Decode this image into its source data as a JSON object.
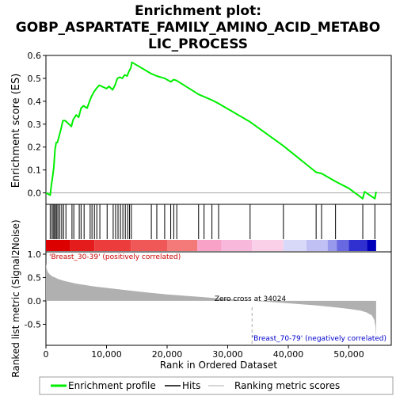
{
  "title_lines": [
    "Enrichment plot:",
    "GOBP_ASPARTATE_FAMILY_AMINO_ACID_METABO",
    "LIC_PROCESS"
  ],
  "colors": {
    "enrichment_line": "#00ee00",
    "hits": "#000000",
    "metric_fill": "#b0b0b0",
    "positive_text": "#cc0000",
    "negative_text": "#0000cc",
    "zero_line": "#999999"
  },
  "chart_data": {
    "type": "line",
    "panels": [
      "enrichment",
      "hits",
      "ranking_metric"
    ],
    "enrichment": {
      "ylabel": "Enrichment score (ES)",
      "ylim": [
        -0.05,
        0.6
      ],
      "yticks": [
        "0.0",
        "0.1",
        "0.2",
        "0.3",
        "0.4",
        "0.5",
        "0.6"
      ],
      "ytick_values": [
        0.0,
        0.1,
        0.2,
        0.3,
        0.4,
        0.5,
        0.6
      ],
      "xlim": [
        0,
        57000
      ],
      "series": [
        {
          "name": "Enrichment profile",
          "x": [
            0,
            700,
            900,
            1100,
            1300,
            1500,
            1700,
            1900,
            2200,
            2500,
            2800,
            3200,
            4200,
            4500,
            5000,
            5400,
            5800,
            6200,
            6800,
            7200,
            7500,
            7900,
            8300,
            8800,
            10000,
            10400,
            11000,
            11400,
            11800,
            12200,
            12600,
            13000,
            13400,
            13700,
            14000,
            14200,
            17400,
            18300,
            19600,
            20600,
            21100,
            21600,
            25200,
            26100,
            27400,
            28500,
            33700,
            39200,
            44600,
            45500,
            47800,
            50000,
            52300,
            52600,
            54300,
            54500
          ],
          "y": [
            0.0,
            -0.01,
            0.035,
            0.07,
            0.11,
            0.19,
            0.22,
            0.22,
            0.25,
            0.28,
            0.315,
            0.315,
            0.29,
            0.32,
            0.34,
            0.33,
            0.37,
            0.38,
            0.37,
            0.4,
            0.42,
            0.44,
            0.455,
            0.47,
            0.455,
            0.465,
            0.45,
            0.47,
            0.5,
            0.505,
            0.5,
            0.515,
            0.51,
            0.53,
            0.545,
            0.57,
            0.52,
            0.51,
            0.5,
            0.485,
            0.495,
            0.49,
            0.43,
            0.42,
            0.405,
            0.39,
            0.31,
            0.205,
            0.09,
            0.085,
            0.05,
            0.02,
            -0.025,
            0.005,
            -0.025,
            0.005
          ]
        }
      ]
    },
    "hits": {
      "legend": "Hits",
      "positions": [
        700,
        1000,
        1200,
        1400,
        1600,
        1800,
        2000,
        2300,
        2600,
        2900,
        3300,
        4300,
        4600,
        5500,
        5800,
        6300,
        7300,
        7600,
        8000,
        8400,
        8900,
        10100,
        11100,
        11500,
        11900,
        12300,
        12700,
        13100,
        13500,
        13800,
        14100,
        17400,
        18300,
        19600,
        20600,
        21100,
        21600,
        25200,
        26100,
        27400,
        28500,
        33700,
        39200,
        44600,
        45500,
        47800,
        52300,
        54300
      ]
    },
    "ranking_metric": {
      "legend": "Ranking metric scores",
      "ylabel": "Ranked list metric (Signal2Noise)",
      "xlabel": "Rank in Ordered Dataset",
      "ylim": [
        -0.95,
        1.05
      ],
      "yticks": [
        "-0.5",
        "0.0",
        "0.5",
        "1.0"
      ],
      "ytick_values": [
        -0.5,
        0.0,
        0.5,
        1.0
      ],
      "xticks": [
        "0",
        "10,000",
        "20,000",
        "30,000",
        "40,000",
        "50,000"
      ],
      "xtick_values": [
        0,
        10000,
        20000,
        30000,
        40000,
        50000
      ],
      "xlim": [
        0,
        57000
      ],
      "x": [
        0,
        100,
        300,
        600,
        1000,
        1500,
        2000,
        3000,
        5000,
        8000,
        12000,
        16000,
        20000,
        25000,
        30000,
        34024,
        38000,
        42000,
        45000,
        48000,
        50000,
        52000,
        53000,
        53800,
        54200,
        54400,
        54500
      ],
      "y": [
        0.8,
        0.7,
        0.62,
        0.57,
        0.53,
        0.5,
        0.47,
        0.43,
        0.37,
        0.31,
        0.25,
        0.19,
        0.14,
        0.09,
        0.04,
        0.0,
        -0.03,
        -0.07,
        -0.1,
        -0.14,
        -0.17,
        -0.21,
        -0.25,
        -0.31,
        -0.4,
        -0.55,
        -0.8
      ],
      "zero_cross_rank": 34024,
      "zero_cross_label": "Zero cross at 34024",
      "positive_label": "'Breast_30-39' (positively correlated)",
      "negative_label": "'Breast_70-79' (negatively correlated)"
    },
    "color_bar": {
      "breaks": [
        0,
        4000,
        8000,
        14000,
        20000,
        25000,
        29000,
        34000,
        39200,
        43000,
        46500,
        48000,
        50000,
        53000,
        54500
      ],
      "colors": [
        "#dd0000",
        "#e41c1c",
        "#ec3c3c",
        "#f05858",
        "#f47a7a",
        "#f8a2c8",
        "#f8b8dc",
        "#fad0e8",
        "#d8d8f8",
        "#c0c0f4",
        "#9898ec",
        "#6868e0",
        "#3030d0",
        "#0000bb"
      ]
    },
    "legend": [
      {
        "label": "Enrichment profile",
        "style": "green-line"
      },
      {
        "label": "Hits",
        "style": "black-tick"
      },
      {
        "label": "Ranking metric scores",
        "style": "gray-line"
      }
    ]
  }
}
